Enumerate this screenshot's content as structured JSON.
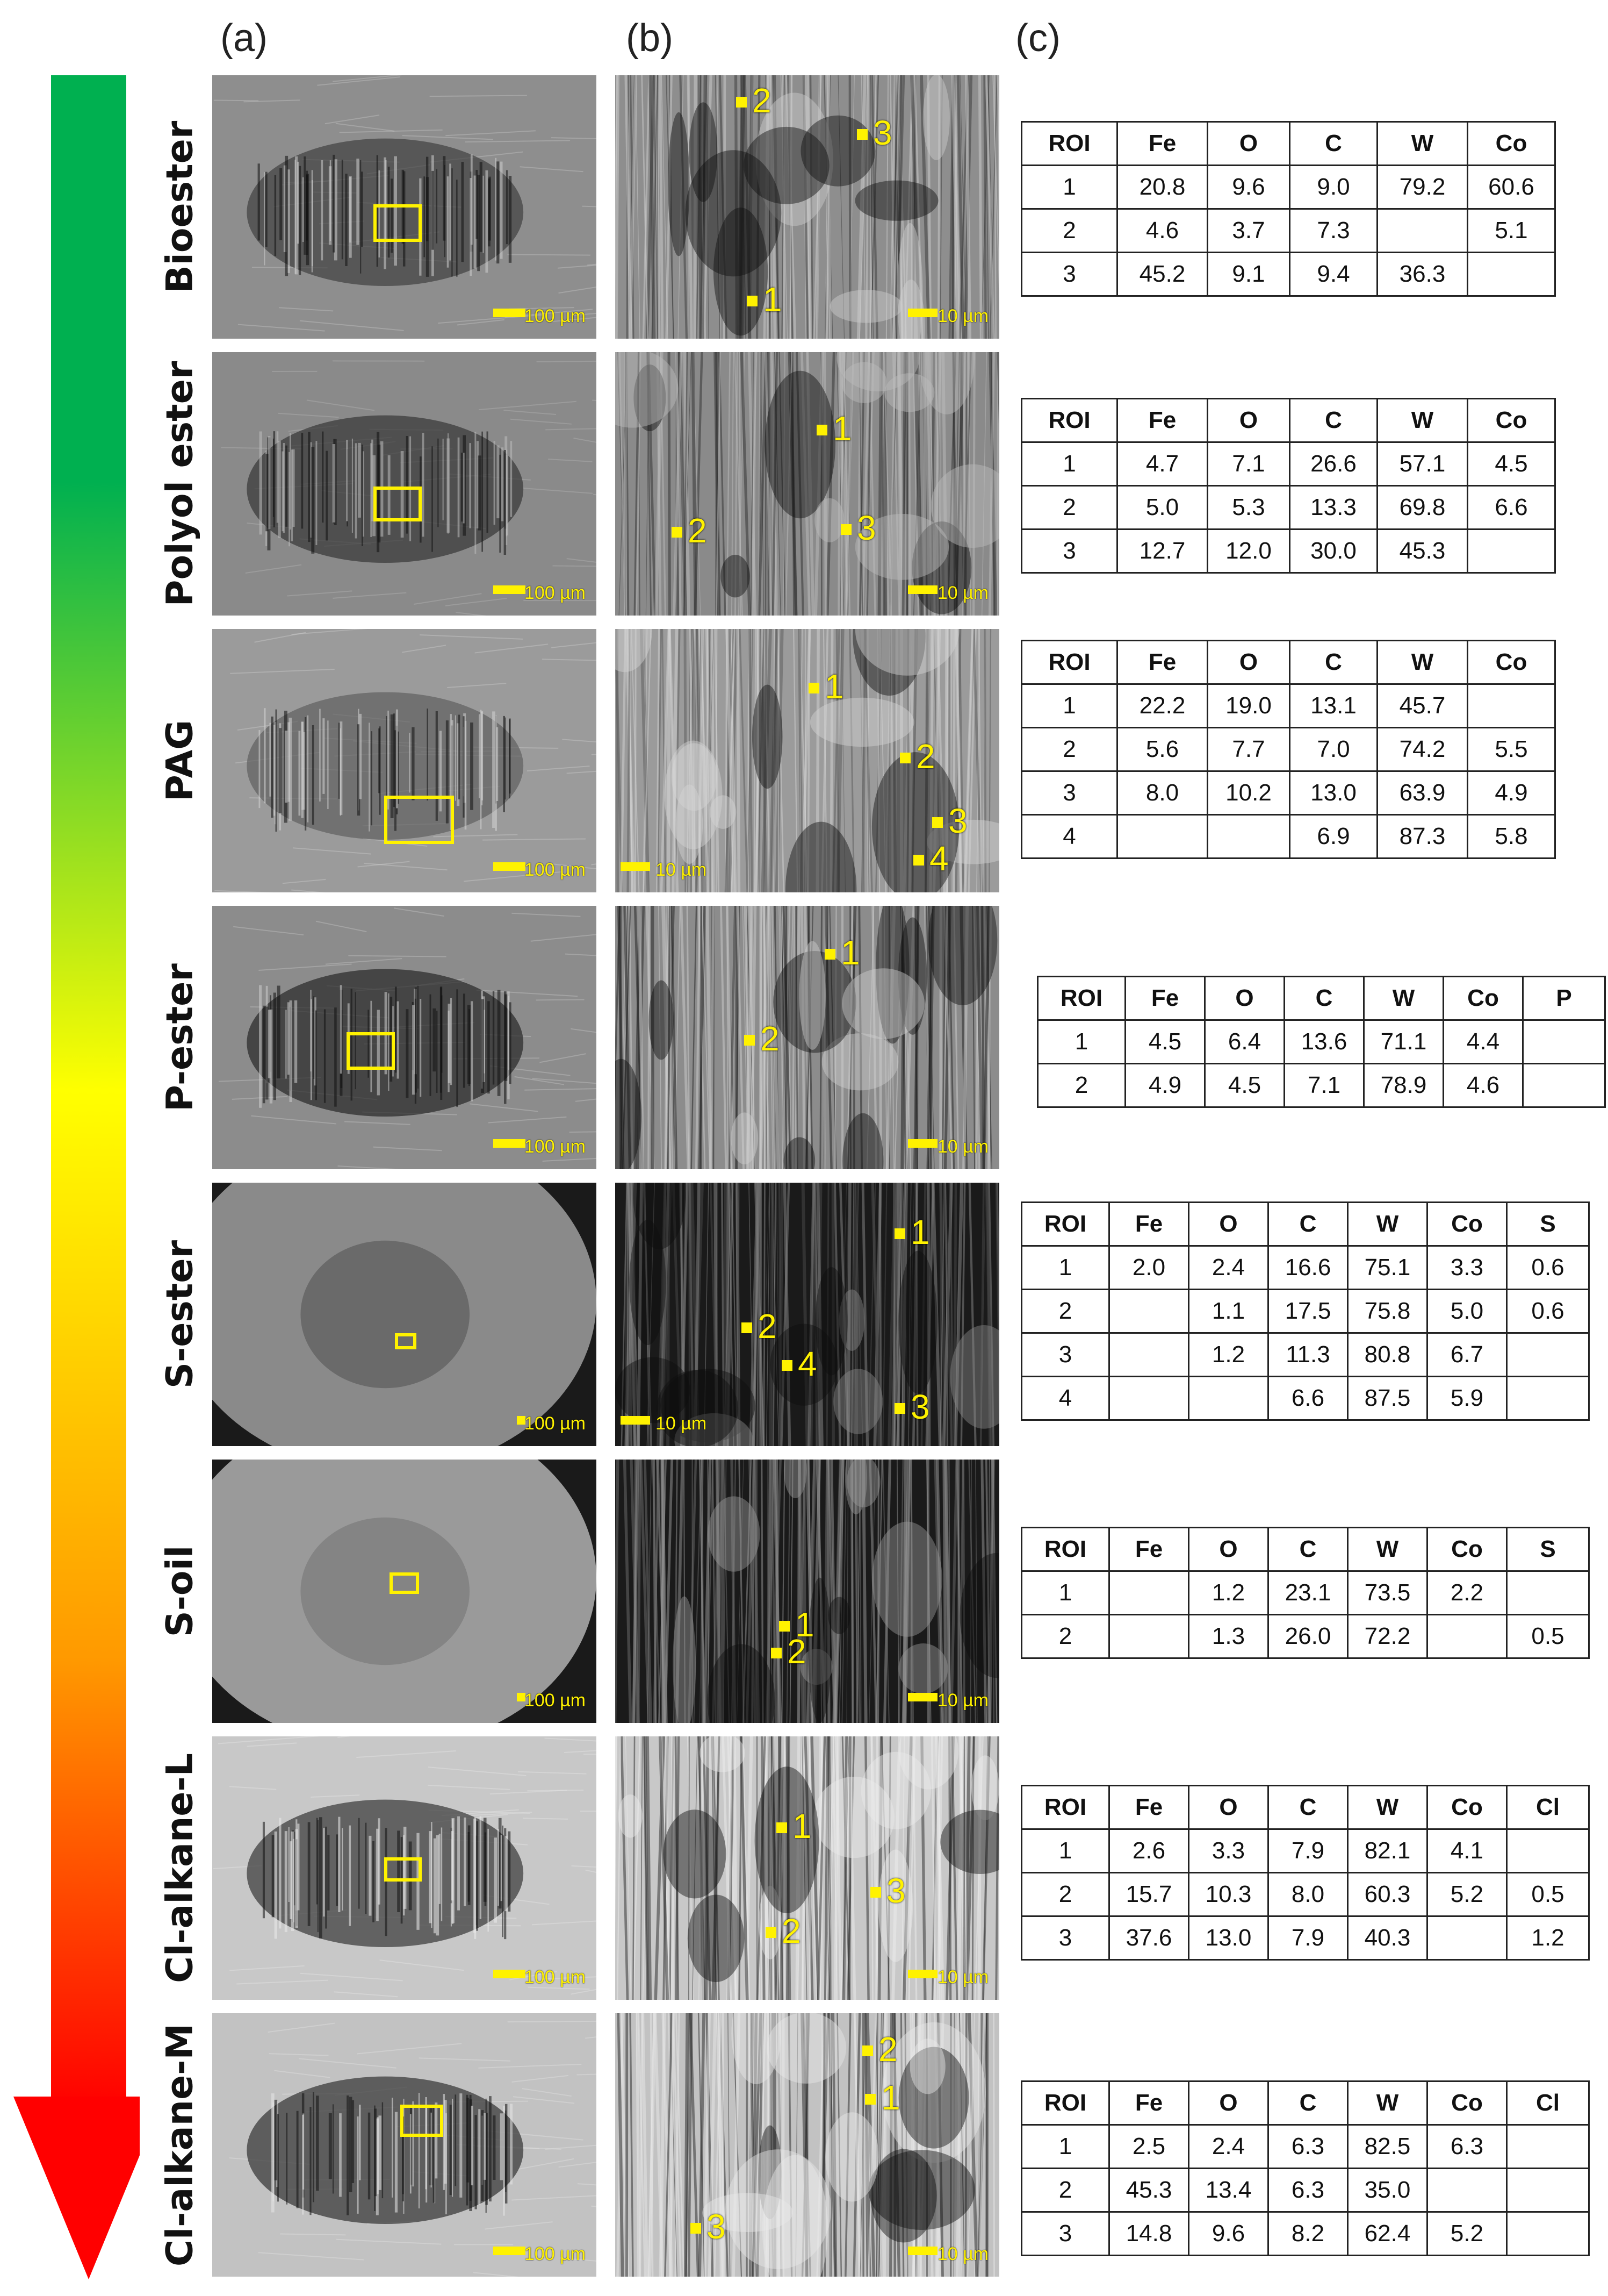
{
  "figure": {
    "column_labels": {
      "a": "(a)",
      "b": "(b)",
      "c": "(c)"
    },
    "arrow_gradient": [
      "#00b050",
      "#7fc31c",
      "#ffff00",
      "#ff9900",
      "#ff0000"
    ],
    "scale_labels": {
      "large": "100 µm",
      "small": "10 µm"
    },
    "rows": [
      {
        "name": "Bioester",
        "roi_labels_b": [
          "1",
          "2",
          "3"
        ],
        "table": {
          "headers": [
            "ROI",
            "Fe",
            "O",
            "C",
            "W",
            "Co"
          ],
          "rows": [
            [
              "1",
              "20.8",
              "9.6",
              "9.0",
              "79.2",
              "60.6"
            ],
            [
              "2",
              "4.6",
              "3.7",
              "7.3",
              "",
              "5.1"
            ],
            [
              "3",
              "45.2",
              "9.1",
              "9.4",
              "36.3",
              ""
            ]
          ]
        }
      },
      {
        "name": "Polyol ester",
        "roi_labels_b": [
          "1",
          "2",
          "3"
        ],
        "table": {
          "headers": [
            "ROI",
            "Fe",
            "O",
            "C",
            "W",
            "Co"
          ],
          "rows": [
            [
              "1",
              "4.7",
              "7.1",
              "26.6",
              "57.1",
              "4.5"
            ],
            [
              "2",
              "5.0",
              "5.3",
              "13.3",
              "69.8",
              "6.6"
            ],
            [
              "3",
              "12.7",
              "12.0",
              "30.0",
              "45.3",
              ""
            ]
          ]
        }
      },
      {
        "name": "PAG",
        "roi_labels_b": [
          "1",
          "2",
          "3",
          "4"
        ],
        "table": {
          "headers": [
            "ROI",
            "Fe",
            "O",
            "C",
            "W",
            "Co"
          ],
          "rows": [
            [
              "1",
              "22.2",
              "19.0",
              "13.1",
              "45.7",
              ""
            ],
            [
              "2",
              "5.6",
              "7.7",
              "7.0",
              "74.2",
              "5.5"
            ],
            [
              "3",
              "8.0",
              "10.2",
              "13.0",
              "63.9",
              "4.9"
            ],
            [
              "4",
              "",
              "",
              "6.9",
              "87.3",
              "5.8"
            ]
          ]
        }
      },
      {
        "name": "P-ester",
        "roi_labels_b": [
          "1",
          "2"
        ],
        "table": {
          "headers": [
            "ROI",
            "Fe",
            "O",
            "C",
            "W",
            "Co",
            "P"
          ],
          "rows": [
            [
              "1",
              "4.5",
              "6.4",
              "13.6",
              "71.1",
              "4.4",
              ""
            ],
            [
              "2",
              "4.9",
              "4.5",
              "7.1",
              "78.9",
              "4.6",
              ""
            ]
          ]
        }
      },
      {
        "name": "S-ester",
        "roi_labels_b": [
          "1",
          "2",
          "3",
          "4"
        ],
        "table": {
          "headers": [
            "ROI",
            "Fe",
            "O",
            "C",
            "W",
            "Co",
            "S"
          ],
          "rows": [
            [
              "1",
              "2.0",
              "2.4",
              "16.6",
              "75.1",
              "3.3",
              "0.6"
            ],
            [
              "2",
              "",
              "1.1",
              "17.5",
              "75.8",
              "5.0",
              "0.6"
            ],
            [
              "3",
              "",
              "1.2",
              "11.3",
              "80.8",
              "6.7",
              ""
            ],
            [
              "4",
              "",
              "",
              "6.6",
              "87.5",
              "5.9",
              ""
            ]
          ]
        }
      },
      {
        "name": "S-oil",
        "roi_labels_b": [
          "1",
          "2"
        ],
        "table": {
          "headers": [
            "ROI",
            "Fe",
            "O",
            "C",
            "W",
            "Co",
            "S"
          ],
          "rows": [
            [
              "1",
              "",
              "1.2",
              "23.1",
              "73.5",
              "2.2",
              ""
            ],
            [
              "2",
              "",
              "1.3",
              "26.0",
              "72.2",
              "",
              "0.5"
            ]
          ]
        }
      },
      {
        "name": "Cl-alkane-L",
        "roi_labels_b": [
          "1",
          "2",
          "3"
        ],
        "table": {
          "headers": [
            "ROI",
            "Fe",
            "O",
            "C",
            "W",
            "Co",
            "Cl"
          ],
          "rows": [
            [
              "1",
              "2.6",
              "3.3",
              "7.9",
              "82.1",
              "4.1",
              ""
            ],
            [
              "2",
              "15.7",
              "10.3",
              "8.0",
              "60.3",
              "5.2",
              "0.5"
            ],
            [
              "3",
              "37.6",
              "13.0",
              "7.9",
              "40.3",
              "",
              "1.2"
            ]
          ]
        }
      },
      {
        "name": "Cl-alkane-M",
        "roi_labels_b": [
          "1",
          "2",
          "3"
        ],
        "table": {
          "headers": [
            "ROI",
            "Fe",
            "O",
            "C",
            "W",
            "Co",
            "Cl"
          ],
          "rows": [
            [
              "1",
              "2.5",
              "2.4",
              "6.3",
              "82.5",
              "6.3",
              ""
            ],
            [
              "2",
              "45.3",
              "13.4",
              "6.3",
              "35.0",
              "",
              ""
            ],
            [
              "3",
              "14.8",
              "9.6",
              "8.2",
              "62.4",
              "5.2",
              ""
            ]
          ]
        }
      }
    ]
  }
}
